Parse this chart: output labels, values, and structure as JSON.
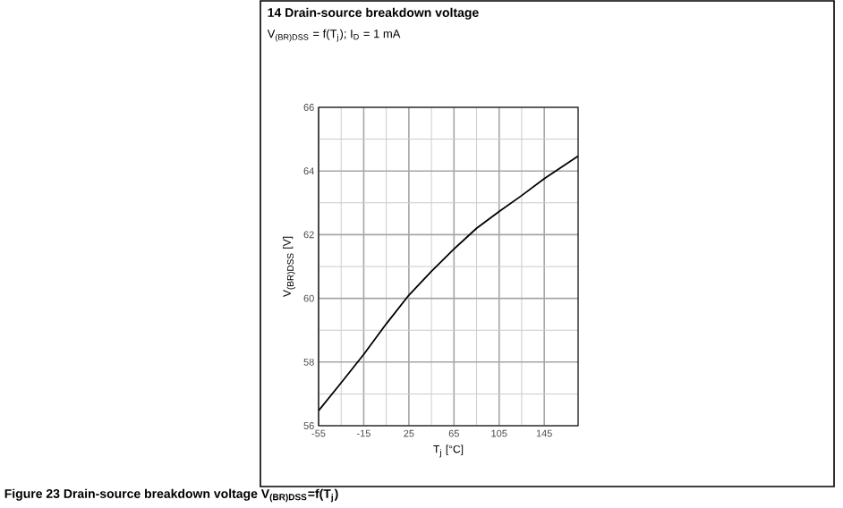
{
  "chart_data": {
    "type": "line",
    "title": "14 Drain-source breakdown voltage",
    "subtitle": "V$_{(BR)DSS}$ = f(T$_{j}$); I$_{D}$ = 1 mA",
    "xlabel": "T$_{j}$ [°C]",
    "ylabel": "V$_{(BR)DSS}$ [V]",
    "annotations": [
      "**Figure 23    Drain-source breakdown voltage V$_{(BR)DSS}$=f(T$_{j}$)**"
    ],
    "x": [
      -55,
      -35,
      -15,
      5,
      25,
      45,
      65,
      85,
      105,
      125,
      145,
      175
    ],
    "series": [
      {
        "color": "#000000",
        "values": [
          56.47,
          57.35,
          58.24,
          59.2,
          60.1,
          60.85,
          61.55,
          62.2,
          62.73,
          63.23,
          63.76,
          64.47
        ]
      }
    ],
    "xlim": [
      -55,
      175
    ],
    "ylim": [
      56,
      66
    ],
    "xticks": [
      -55,
      -15,
      25,
      65,
      105,
      145
    ],
    "yticks": [
      56,
      58,
      60,
      62,
      64,
      66
    ],
    "grid": true,
    "marker": "none",
    "line_style": "solid"
  }
}
